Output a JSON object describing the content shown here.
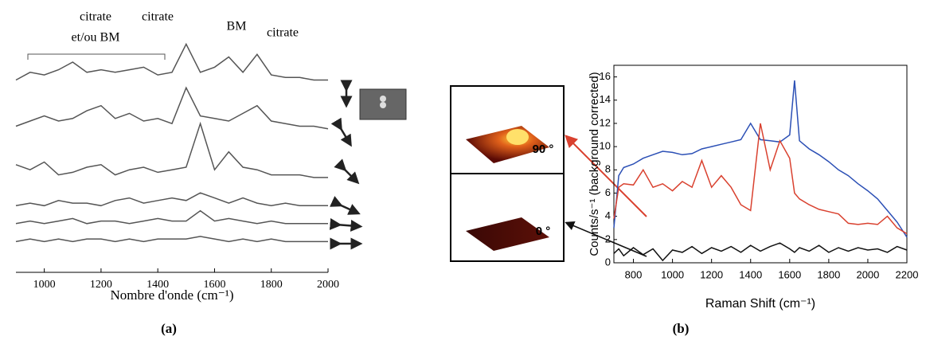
{
  "chart_data": [
    {
      "type": "line",
      "caption": "(a)",
      "x_label": "Nombre d'onde (cm⁻¹)",
      "annotations": [
        "citrate",
        "et/ou BM",
        "citrate",
        "BM",
        "citrate"
      ],
      "x": [
        900,
        950,
        1000,
        1050,
        1100,
        1150,
        1200,
        1250,
        1300,
        1350,
        1400,
        1450,
        1500,
        1550,
        1600,
        1650,
        1700,
        1750,
        1800,
        1850,
        1900,
        1950,
        2000
      ],
      "xlim": [
        900,
        2000
      ],
      "xticks": [
        1000,
        1200,
        1400,
        1600,
        1800,
        2000
      ],
      "ylim": [
        0,
        10
      ],
      "series": [
        {
          "color": "#555555",
          "values": [
            7.5,
            7.8,
            7.7,
            7.9,
            8.2,
            7.8,
            7.9,
            7.8,
            7.9,
            8.0,
            7.7,
            7.8,
            8.9,
            7.8,
            8.0,
            8.4,
            7.8,
            8.5,
            7.7,
            7.6,
            7.6,
            7.5,
            7.5
          ]
        },
        {
          "color": "#555555",
          "values": [
            5.7,
            5.9,
            6.1,
            5.9,
            6.0,
            6.3,
            6.5,
            6.0,
            6.2,
            5.9,
            6.0,
            5.8,
            7.2,
            6.1,
            6.0,
            5.9,
            6.2,
            6.5,
            5.9,
            5.8,
            5.7,
            5.7,
            5.6
          ]
        },
        {
          "color": "#555555",
          "values": [
            4.2,
            4.0,
            4.3,
            3.8,
            3.9,
            4.1,
            4.2,
            3.8,
            4.0,
            4.1,
            3.9,
            4.0,
            4.1,
            5.8,
            4.0,
            4.7,
            4.1,
            4.0,
            3.8,
            3.8,
            3.8,
            3.7,
            3.7
          ]
        },
        {
          "color": "#555555",
          "values": [
            2.6,
            2.7,
            2.6,
            2.8,
            2.7,
            2.7,
            2.6,
            2.8,
            2.9,
            2.7,
            2.8,
            2.9,
            2.8,
            3.1,
            2.9,
            2.7,
            2.9,
            2.7,
            2.6,
            2.7,
            2.6,
            2.6,
            2.6
          ]
        },
        {
          "color": "#555555",
          "values": [
            1.9,
            2.0,
            1.9,
            2.0,
            2.1,
            1.9,
            2.0,
            2.0,
            1.9,
            2.0,
            2.1,
            2.0,
            2.0,
            2.4,
            2.0,
            2.1,
            2.0,
            1.9,
            2.0,
            1.9,
            1.9,
            1.9,
            1.9
          ]
        },
        {
          "color": "#555555",
          "values": [
            1.2,
            1.3,
            1.2,
            1.3,
            1.2,
            1.3,
            1.3,
            1.2,
            1.3,
            1.2,
            1.3,
            1.3,
            1.3,
            1.4,
            1.3,
            1.2,
            1.3,
            1.2,
            1.3,
            1.2,
            1.2,
            1.2,
            1.2
          ]
        }
      ]
    },
    {
      "type": "line",
      "caption": "(b)",
      "x_label": "Raman Shift (cm⁻¹)",
      "y_label": "Counts/s⁻¹ (background corrected)",
      "annotations": [
        "90 °",
        "0 °"
      ],
      "x": [
        700,
        725,
        750,
        800,
        850,
        900,
        950,
        1000,
        1050,
        1100,
        1150,
        1200,
        1250,
        1300,
        1350,
        1400,
        1450,
        1500,
        1550,
        1600,
        1625,
        1650,
        1700,
        1750,
        1800,
        1850,
        1900,
        1950,
        2000,
        2050,
        2100,
        2150,
        2200
      ],
      "xlim": [
        700,
        2200
      ],
      "xticks": [
        800,
        1000,
        1200,
        1400,
        1600,
        1800,
        2000,
        2200
      ],
      "ylim": [
        0,
        17
      ],
      "yticks": [
        0,
        2,
        4,
        6,
        8,
        10,
        12,
        14,
        16
      ],
      "series": [
        {
          "color": "#2b4fb5",
          "values": [
            3,
            7.5,
            8.2,
            8.5,
            9,
            9.3,
            9.6,
            9.5,
            9.3,
            9.4,
            9.8,
            10,
            10.2,
            10.4,
            10.6,
            12,
            10.6,
            10.5,
            10.4,
            11,
            15.7,
            10.5,
            9.8,
            9.3,
            8.7,
            8,
            7.5,
            6.8,
            6.2,
            5.5,
            4.5,
            3.5,
            2.2
          ]
        },
        {
          "color": "#d9412f",
          "values": [
            3.8,
            6.5,
            6.8,
            6.7,
            8,
            6.5,
            6.8,
            6.2,
            7,
            6.5,
            8.8,
            6.5,
            7.5,
            6.5,
            5,
            4.5,
            12,
            8,
            10.5,
            9,
            6,
            5.5,
            5,
            4.6,
            4.4,
            4.2,
            3.4,
            3.3,
            3.4,
            3.3,
            4,
            3,
            2.5
          ]
        },
        {
          "color": "#111111",
          "values": [
            0.8,
            1.2,
            0.6,
            1.3,
            0.7,
            1.2,
            0.2,
            1.1,
            0.9,
            1.4,
            0.8,
            1.3,
            1,
            1.4,
            0.9,
            1.5,
            1,
            1.4,
            1.7,
            1.2,
            0.9,
            1.3,
            1,
            1.5,
            0.9,
            1.3,
            1,
            1.3,
            1.1,
            1.2,
            0.9,
            1.4,
            1.1
          ]
        }
      ]
    }
  ]
}
